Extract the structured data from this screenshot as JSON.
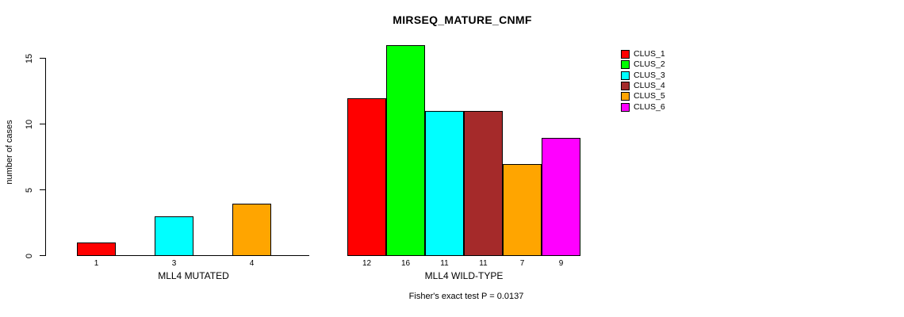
{
  "chart_data": {
    "type": "bar",
    "title": "MIRSEQ_MATURE_CNMF",
    "ylabel": "number of cases",
    "xlabel": "",
    "ylim": [
      0,
      16
    ],
    "yticks": [
      0,
      5,
      10,
      15
    ],
    "grid": false,
    "legend_position": "right",
    "legend": [
      {
        "label": "CLUS_1",
        "color": "#FF0000"
      },
      {
        "label": "CLUS_2",
        "color": "#00FF00"
      },
      {
        "label": "CLUS_3",
        "color": "#00FFFF"
      },
      {
        "label": "CLUS_4",
        "color": "#A52A2A"
      },
      {
        "label": "CLUS_5",
        "color": "#FFA500"
      },
      {
        "label": "CLUS_6",
        "color": "#FF00FF"
      }
    ],
    "groups": [
      {
        "label": "MLL4 MUTATED",
        "bars": [
          {
            "cluster": "CLUS_1",
            "value": 1,
            "color": "#FF0000"
          },
          {
            "cluster": "CLUS_3",
            "value": 3,
            "color": "#00FFFF"
          },
          {
            "cluster": "CLUS_5",
            "value": 4,
            "color": "#FFA500"
          }
        ]
      },
      {
        "label": "MLL4 WILD-TYPE",
        "bars": [
          {
            "cluster": "CLUS_1",
            "value": 12,
            "color": "#FF0000"
          },
          {
            "cluster": "CLUS_2",
            "value": 16,
            "color": "#00FF00"
          },
          {
            "cluster": "CLUS_3",
            "value": 11,
            "color": "#00FFFF"
          },
          {
            "cluster": "CLUS_4",
            "value": 11,
            "color": "#A52A2A"
          },
          {
            "cluster": "CLUS_5",
            "value": 7,
            "color": "#FFA500"
          },
          {
            "cluster": "CLUS_6",
            "value": 9,
            "color": "#FF00FF"
          }
        ]
      }
    ],
    "annotation": "Fisher's exact test P = 0.0137"
  }
}
